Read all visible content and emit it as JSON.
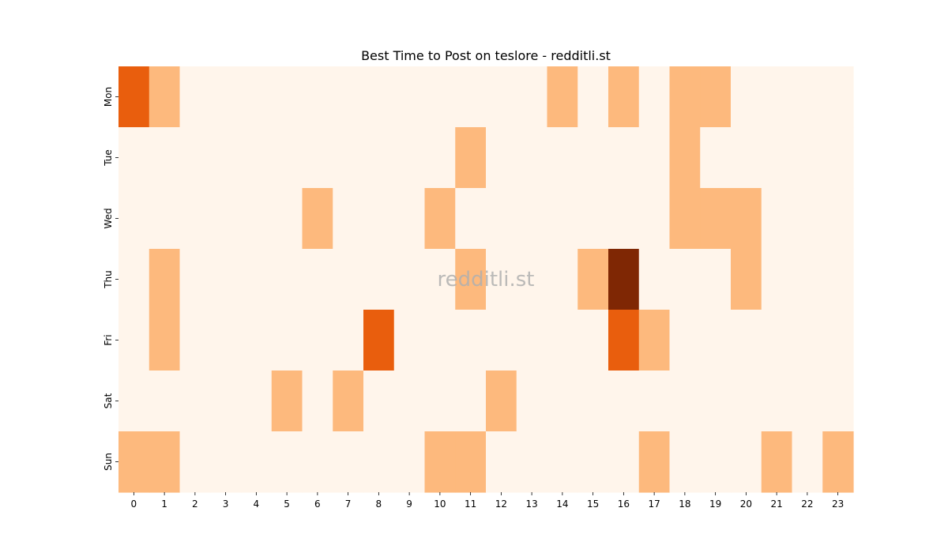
{
  "chart_data": {
    "type": "heatmap",
    "title": "Best Time to Post on teslore - redditli.st",
    "xlabel": "",
    "ylabel": "",
    "x": [
      "0",
      "1",
      "2",
      "3",
      "4",
      "5",
      "6",
      "7",
      "8",
      "9",
      "10",
      "11",
      "12",
      "13",
      "14",
      "15",
      "16",
      "17",
      "18",
      "19",
      "20",
      "21",
      "22",
      "23"
    ],
    "y": [
      "Mon",
      "Tue",
      "Wed",
      "Thu",
      "Fri",
      "Sat",
      "Sun"
    ],
    "values": [
      [
        2,
        1,
        0,
        0,
        0,
        0,
        0,
        0,
        0,
        0,
        0,
        0,
        0,
        0,
        1,
        0,
        1,
        0,
        1,
        1,
        0,
        0,
        0,
        0
      ],
      [
        0,
        0,
        0,
        0,
        0,
        0,
        0,
        0,
        0,
        0,
        0,
        1,
        0,
        0,
        0,
        0,
        0,
        0,
        1,
        0,
        0,
        0,
        0,
        0
      ],
      [
        0,
        0,
        0,
        0,
        0,
        0,
        1,
        0,
        0,
        0,
        1,
        0,
        0,
        0,
        0,
        0,
        0,
        0,
        1,
        1,
        1,
        0,
        0,
        0
      ],
      [
        0,
        1,
        0,
        0,
        0,
        0,
        0,
        0,
        0,
        0,
        0,
        1,
        0,
        0,
        0,
        1,
        3,
        0,
        0,
        0,
        1,
        0,
        0,
        0
      ],
      [
        0,
        1,
        0,
        0,
        0,
        0,
        0,
        0,
        2,
        0,
        0,
        0,
        0,
        0,
        0,
        0,
        2,
        1,
        0,
        0,
        0,
        0,
        0,
        0
      ],
      [
        0,
        0,
        0,
        0,
        0,
        1,
        0,
        1,
        0,
        0,
        0,
        0,
        1,
        0,
        0,
        0,
        0,
        0,
        0,
        0,
        0,
        0,
        0,
        0
      ],
      [
        1,
        1,
        0,
        0,
        0,
        0,
        0,
        0,
        0,
        0,
        1,
        1,
        0,
        0,
        0,
        0,
        0,
        1,
        0,
        0,
        0,
        1,
        0,
        1
      ]
    ],
    "colorscale": [
      "#fff5eb",
      "#fdb97d",
      "#e95e0d",
      "#7f2704"
    ],
    "colorbar": false,
    "grid": false,
    "watermark": "redditli.st"
  }
}
